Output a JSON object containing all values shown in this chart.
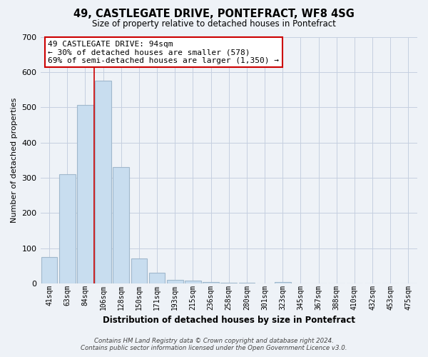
{
  "title": "49, CASTLEGATE DRIVE, PONTEFRACT, WF8 4SG",
  "subtitle": "Size of property relative to detached houses in Pontefract",
  "xlabel": "Distribution of detached houses by size in Pontefract",
  "ylabel": "Number of detached properties",
  "bar_labels": [
    "41sqm",
    "63sqm",
    "84sqm",
    "106sqm",
    "128sqm",
    "150sqm",
    "171sqm",
    "193sqm",
    "215sqm",
    "236sqm",
    "258sqm",
    "280sqm",
    "301sqm",
    "323sqm",
    "345sqm",
    "367sqm",
    "388sqm",
    "410sqm",
    "432sqm",
    "453sqm",
    "475sqm"
  ],
  "bar_values": [
    75,
    310,
    507,
    575,
    330,
    70,
    30,
    10,
    8,
    5,
    3,
    2,
    0,
    5,
    0,
    0,
    0,
    0,
    0,
    0,
    0
  ],
  "bar_color": "#c8ddef",
  "bar_edge_color": "#a0b8cc",
  "vline_color": "#cc0000",
  "vline_x": 2.5,
  "ylim": [
    0,
    700
  ],
  "yticks": [
    0,
    100,
    200,
    300,
    400,
    500,
    600,
    700
  ],
  "annotation_title": "49 CASTLEGATE DRIVE: 94sqm",
  "annotation_line1": "← 30% of detached houses are smaller (578)",
  "annotation_line2": "69% of semi-detached houses are larger (1,350) →",
  "annotation_box_color": "#ffffff",
  "annotation_box_edge": "#cc0000",
  "footnote1": "Contains HM Land Registry data © Crown copyright and database right 2024.",
  "footnote2": "Contains public sector information licensed under the Open Government Licence v3.0.",
  "background_color": "#eef2f7",
  "plot_background": "#eef2f7",
  "grid_color": "#c5cfe0"
}
